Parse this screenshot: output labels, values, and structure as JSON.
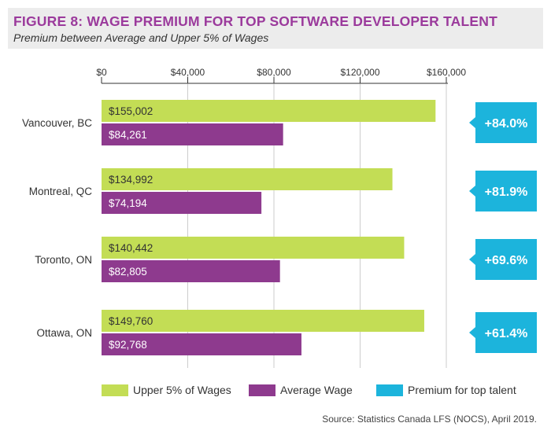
{
  "header": {
    "title": "FIGURE 8: WAGE PREMIUM FOR TOP SOFTWARE DEVELOPER TALENT",
    "subtitle": "Premium between Average and Upper 5% of Wages"
  },
  "colors": {
    "upper": "#c3dd55",
    "average": "#8e3a8e",
    "premium": "#1cb4dc",
    "grid": "#cccccc",
    "axis": "#333333"
  },
  "chart_data": {
    "type": "bar",
    "orientation": "horizontal",
    "title": "FIGURE 8: WAGE PREMIUM FOR TOP SOFTWARE DEVELOPER TALENT",
    "subtitle": "Premium between Average and Upper 5% of Wages",
    "categories": [
      "Vancouver, BC",
      "Montreal, QC",
      "Toronto, ON",
      "Ottawa, ON"
    ],
    "xlim": [
      0,
      160000
    ],
    "ticks": [
      0,
      40000,
      80000,
      120000,
      160000
    ],
    "tick_labels": [
      "$0",
      "$40,000",
      "$80,000",
      "$120,000",
      "$160,000"
    ],
    "series": [
      {
        "name": "Upper 5% of Wages",
        "values": [
          155002,
          134992,
          140442,
          149760
        ],
        "labels": [
          "$155,002",
          "$134,992",
          "$140,442",
          "$149,760"
        ]
      },
      {
        "name": "Average Wage",
        "values": [
          84261,
          74194,
          82805,
          92768
        ],
        "labels": [
          "$84,261",
          "$74,194",
          "$82,805",
          "$92,768"
        ]
      }
    ],
    "premium": {
      "name": "Premium for top talent",
      "values": [
        84.0,
        81.9,
        69.6,
        61.4
      ],
      "labels": [
        "+84.0%",
        "+81.9%",
        "+69.6%",
        "+61.4%"
      ]
    },
    "legend": [
      "Upper 5% of Wages",
      "Average Wage",
      "Premium for top talent"
    ],
    "legend_position": "bottom",
    "grid": true
  },
  "source": "Source: Statistics Canada LFS (NOCS), April 2019."
}
